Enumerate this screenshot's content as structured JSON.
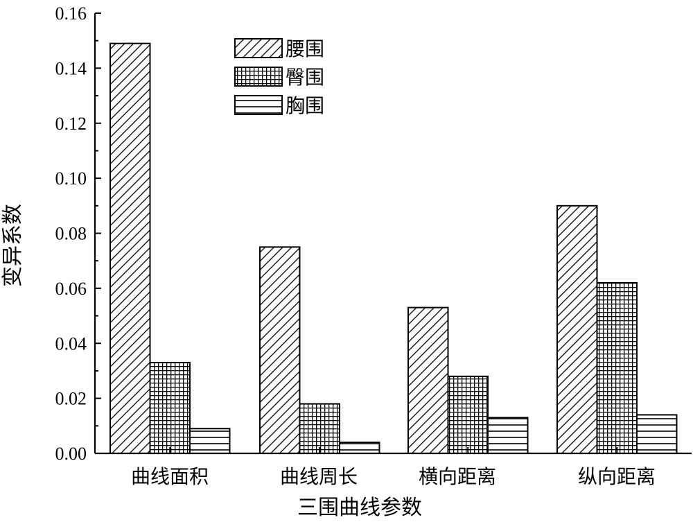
{
  "chart_data": {
    "type": "bar",
    "title": "",
    "xlabel": "三围曲线参数",
    "ylabel": "变异系数",
    "categories": [
      "曲线面积",
      "曲线周长",
      "横向距离",
      "纵向距离"
    ],
    "series": [
      {
        "name": "腰围",
        "pattern": "diagonal-hatch",
        "values": [
          0.149,
          0.075,
          0.053,
          0.09
        ]
      },
      {
        "name": "臀围",
        "pattern": "crosshatch-grid",
        "values": [
          0.033,
          0.018,
          0.028,
          0.062
        ]
      },
      {
        "name": "胸围",
        "pattern": "horizontal-lines",
        "values": [
          0.009,
          0.004,
          0.013,
          0.014
        ]
      }
    ],
    "ylim": [
      0,
      0.16
    ],
    "yticks": [
      "0.00",
      "0.02",
      "0.04",
      "0.06",
      "0.08",
      "0.10",
      "0.12",
      "0.14",
      "0.16"
    ],
    "grid": false,
    "legend_position": "top-center",
    "colors": {
      "stroke": "#000000",
      "background": "#ffffff"
    }
  }
}
